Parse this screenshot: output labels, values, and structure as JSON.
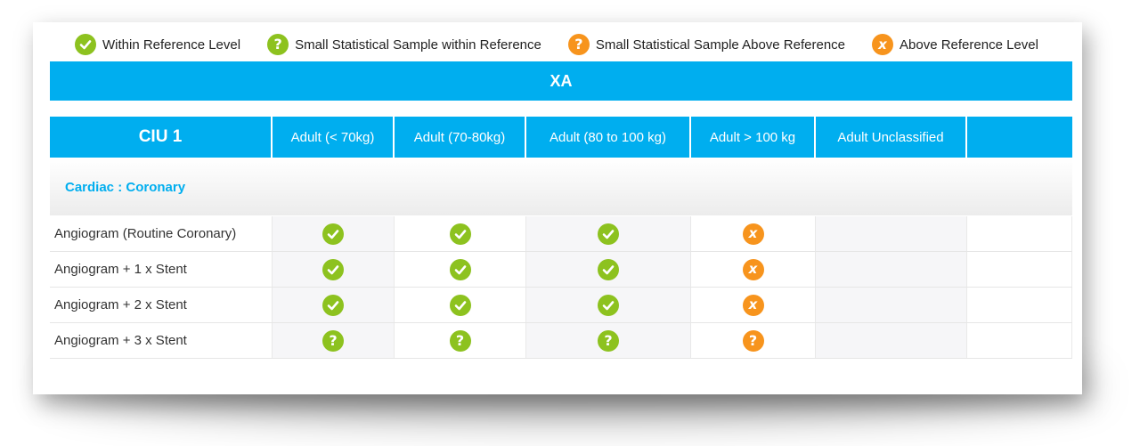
{
  "legend": {
    "items": [
      {
        "label": "Within Reference Level",
        "icon": "check-icon",
        "color": "#8dc21f",
        "glyph": "✓"
      },
      {
        "label": "Small Statistical Sample within Reference",
        "icon": "question-icon",
        "color": "#8dc21f",
        "glyph": "?"
      },
      {
        "label": "Small Statistical Sample Above Reference",
        "icon": "question-icon",
        "color": "#f7941d",
        "glyph": "?"
      },
      {
        "label": "Above Reference Level",
        "icon": "x-icon",
        "color": "#f7941d",
        "glyph": "x"
      }
    ]
  },
  "modality": "XA",
  "table": {
    "unit": "CIU 1",
    "columns": [
      "Adult (< 70kg)",
      "Adult (70-80kg)",
      "Adult (80 to 100 kg)",
      "Adult > 100 kg",
      "Adult Unclassified",
      ""
    ],
    "section": "Cardiac : Coronary",
    "rows": [
      {
        "name": "Angiogram (Routine Coronary)",
        "status": [
          "within",
          "within",
          "within",
          "above",
          "",
          ""
        ]
      },
      {
        "name": "Angiogram + 1 x Stent",
        "status": [
          "within",
          "within",
          "within",
          "above",
          "",
          ""
        ]
      },
      {
        "name": "Angiogram + 2 x Stent",
        "status": [
          "within",
          "within",
          "within",
          "above",
          "",
          ""
        ]
      },
      {
        "name": "Angiogram + 3 x Stent",
        "status": [
          "small-within",
          "small-within",
          "small-within",
          "small-above",
          "",
          ""
        ]
      }
    ]
  },
  "colors": {
    "accent": "#00aeef",
    "green": "#8dc21f",
    "orange": "#f7941d"
  }
}
